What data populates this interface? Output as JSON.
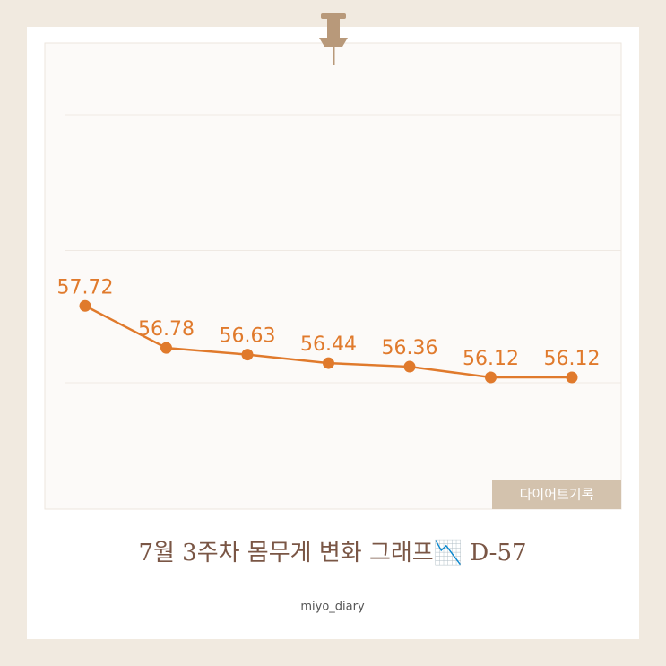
{
  "chart_data": {
    "type": "line",
    "values": [
      57.72,
      56.78,
      56.63,
      56.44,
      56.36,
      56.12,
      56.12
    ],
    "color": "#e07a2c",
    "ylim": [
      56,
      62
    ],
    "grid": true
  },
  "badge": "다이어트기록",
  "caption": "7월 3주차 몸무게 변화 그래프📉 D-57",
  "author": "miyo_diary"
}
